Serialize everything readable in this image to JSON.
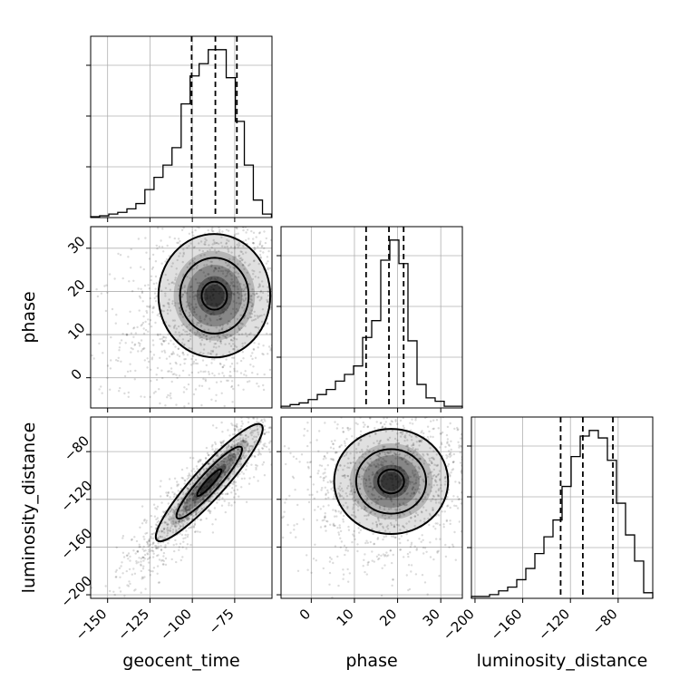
{
  "chart_data": {
    "type": "corner",
    "parameters": [
      "geocent_time",
      "phase",
      "luminosity_distance"
    ],
    "axes": {
      "geocent_time": {
        "label": "geocent_time",
        "range": [
          -160,
          -53
        ],
        "ticks": [
          -150,
          -125,
          -100,
          -75
        ],
        "tick_labels": [
          "−150",
          "−125",
          "−100",
          "−75"
        ]
      },
      "phase": {
        "label": "phase",
        "range": [
          -7,
          35
        ],
        "ticks": [
          0,
          10,
          20,
          30
        ],
        "tick_labels": [
          "0",
          "10",
          "20",
          "30"
        ]
      },
      "luminosity_distance": {
        "label": "luminosity_distance",
        "range": [
          -203,
          -51
        ],
        "ticks": [
          -200,
          -160,
          -120,
          -80
        ],
        "tick_labels": [
          "−200",
          "−160",
          "−120",
          "−80"
        ]
      }
    },
    "marginals": {
      "geocent_time": {
        "bin_edges": [
          -160,
          -154.7,
          -149.3,
          -144,
          -138.6,
          -133.3,
          -128,
          -122.6,
          -117.3,
          -112,
          -106.6,
          -101.3,
          -96,
          -90.6,
          -85.3,
          -80,
          -74.6,
          -69.3,
          -64,
          -58.6,
          -53.3
        ],
        "counts": [
          0.5,
          1,
          2,
          3,
          5,
          8,
          16,
          23,
          30,
          40,
          65,
          81,
          88,
          96,
          96,
          80,
          55,
          30,
          10,
          2
        ],
        "quantiles": [
          -100.4,
          -86.4,
          -73.7
        ]
      },
      "phase": {
        "bin_edges": [
          -7,
          -4.9,
          -2.8,
          -0.7,
          1.4,
          3.5,
          5.6,
          7.7,
          9.8,
          11.9,
          14,
          16.1,
          18.2,
          20.3,
          22.4,
          24.5,
          26.6,
          28.7,
          30.8,
          32.9,
          35
        ],
        "counts": [
          1,
          2,
          3,
          5,
          8,
          11,
          16,
          20,
          25,
          42,
          52,
          88,
          100,
          86,
          40,
          14,
          6,
          4,
          1,
          1
        ],
        "quantiles": [
          12.7,
          18,
          21.4
        ]
      },
      "luminosity_distance": {
        "bin_edges": [
          -203,
          -195.4,
          -187.8,
          -180.2,
          -172.6,
          -165,
          -157.4,
          -149.8,
          -142.2,
          -134.6,
          -127,
          -119.4,
          -111.8,
          -104.2,
          -96.6,
          -89,
          -81.4,
          -73.8,
          -66.2,
          -58.6,
          -51
        ],
        "counts": [
          1,
          1,
          2,
          4,
          6,
          10,
          16,
          24,
          33,
          42,
          60,
          76,
          87,
          90,
          86,
          74,
          51,
          34,
          20,
          3
        ],
        "quantiles": [
          -128.2,
          -109.6,
          -84.4
        ]
      }
    },
    "pairs": [
      {
        "x": "geocent_time",
        "y": "phase",
        "peak": [
          -87,
          19
        ]
      },
      {
        "x": "geocent_time",
        "y": "luminosity_distance",
        "peak": [
          -90,
          -106
        ]
      },
      {
        "x": "phase",
        "y": "luminosity_distance",
        "peak": [
          18.5,
          -105
        ]
      }
    ],
    "grid": true,
    "legend": "none"
  }
}
